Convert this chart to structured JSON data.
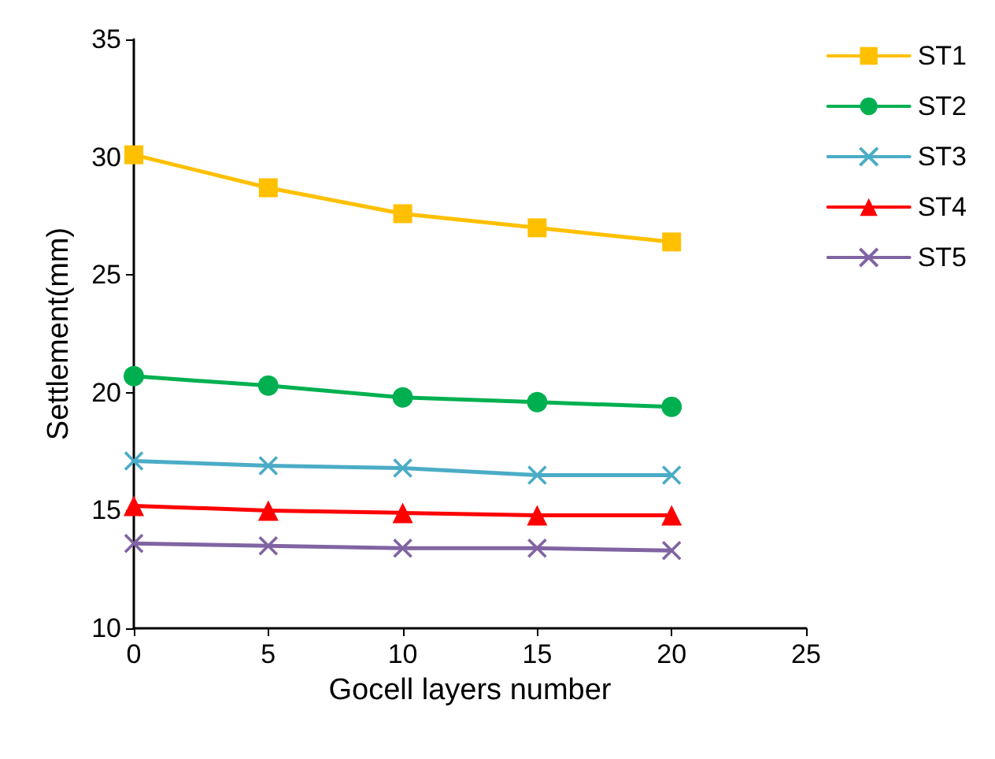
{
  "chart_data": {
    "type": "line",
    "xlabel": "Gocell layers number",
    "ylabel": "Settlement(mm)",
    "x": [
      0,
      5,
      10,
      15,
      20
    ],
    "xlim": [
      0,
      25
    ],
    "xticks": [
      0,
      5,
      10,
      15,
      20,
      25
    ],
    "ylim": [
      10,
      35
    ],
    "yticks": [
      10,
      15,
      20,
      25,
      30,
      35
    ],
    "grid": false,
    "legend": "top right",
    "line_style": "solid",
    "series": [
      {
        "name": "ST1",
        "color": "#ffc000",
        "marker": "square",
        "values": [
          30.1,
          28.7,
          27.6,
          27.0,
          26.4
        ]
      },
      {
        "name": "ST2",
        "color": "#00b050",
        "marker": "circle",
        "values": [
          20.7,
          20.3,
          19.8,
          19.6,
          19.4
        ]
      },
      {
        "name": "ST3",
        "color": "#4bacc6",
        "marker": "cross",
        "values": [
          17.1,
          16.9,
          16.8,
          16.5,
          16.5
        ]
      },
      {
        "name": "ST4",
        "color": "#ff0000",
        "marker": "triangle",
        "values": [
          15.2,
          15.0,
          14.9,
          14.8,
          14.8
        ]
      },
      {
        "name": "ST5",
        "color": "#8064a2",
        "marker": "cross",
        "values": [
          13.6,
          13.5,
          13.4,
          13.4,
          13.3
        ]
      }
    ]
  }
}
